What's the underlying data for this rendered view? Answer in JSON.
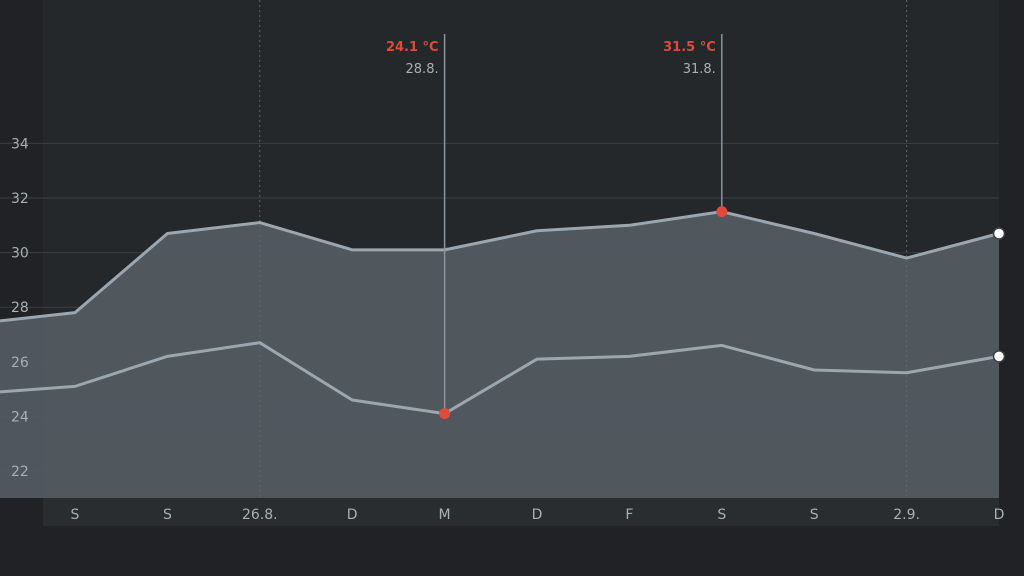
{
  "chart_data": {
    "type": "area",
    "title": "",
    "xlabel": "",
    "ylabel": "",
    "x_tick_labels": [
      "S",
      "S",
      "26.8.",
      "D",
      "M",
      "D",
      "F",
      "S",
      "S",
      "2.9.",
      "D"
    ],
    "y_ticks": [
      22,
      24,
      26,
      28,
      30,
      32,
      34
    ],
    "ylim": [
      21,
      36
    ],
    "grid": true,
    "week_separators": [
      "26.8.",
      "2.9."
    ],
    "series": [
      {
        "role": "upper",
        "lead_in": 27.5,
        "values": [
          27.8,
          30.7,
          31.1,
          30.1,
          30.1,
          30.8,
          31.0,
          31.5,
          30.7,
          29.8,
          30.7
        ]
      },
      {
        "role": "lower",
        "lead_in": 24.9,
        "values": [
          25.1,
          26.2,
          26.7,
          24.6,
          24.1,
          26.1,
          26.2,
          26.6,
          25.7,
          25.6,
          26.2
        ]
      }
    ],
    "annotations": [
      {
        "series": "lower",
        "index": 4,
        "value_label": "24.1 °C",
        "date_label": "28.8."
      },
      {
        "series": "upper",
        "index": 7,
        "value_label": "31.5 °C",
        "date_label": "31.8."
      }
    ],
    "end_markers": true,
    "colors": {
      "background": "#202226",
      "plot_background": "#25282b",
      "x_axis_band": "#2a2d30",
      "area_fill": "#545b62",
      "line": "#9aa7ae",
      "grid": "#3a3f44",
      "highlight": "#e0493b",
      "marker_fill": "#ffffff",
      "text": "#a7b0b4",
      "leader": "#8a969c"
    }
  }
}
